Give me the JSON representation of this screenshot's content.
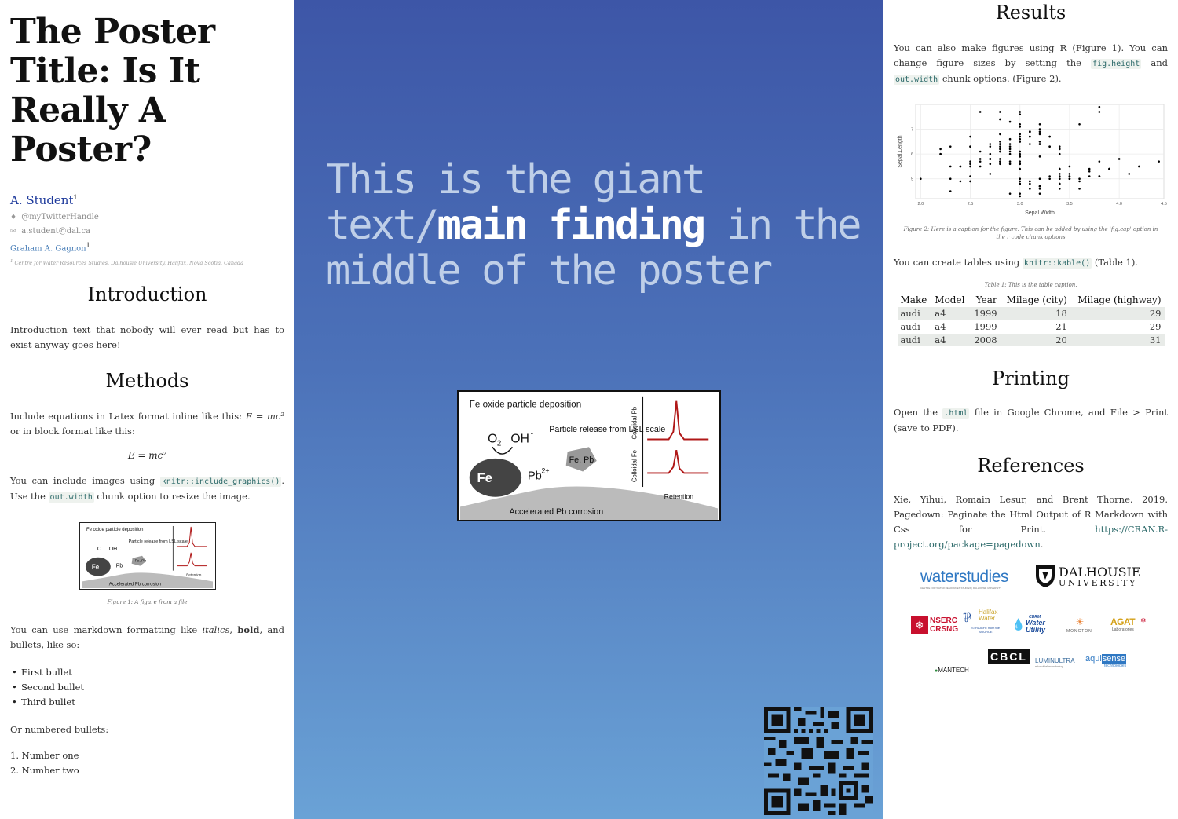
{
  "left": {
    "title": "The Poster Title: Is It Really A Poster?",
    "author": "A. Student",
    "author_sup": "1",
    "twitter": "@myTwitterHandle",
    "email": "a.student@dal.ca",
    "second_author": "Graham A. Gagnon",
    "second_author_sup": "1",
    "affiliation_sup": "1",
    "affiliation": "Centre for Water Resources Studies, Dalhousie University, Halifax, Nova Scotia, Canada",
    "intro_heading": "Introduction",
    "intro_text": "Introduction text that nobody will ever read but has to exist anyway goes here!",
    "methods_heading": "Methods",
    "eq_text_1": "Include equations in Latex format inline like this:",
    "eq_inline": "E = mc²",
    "eq_text_2": "or in block format like this:",
    "eq_block": "E = mc²",
    "img_text_1": "You can include images using",
    "img_code_1": "knitr::include_graphics()",
    "img_text_2": ". Use the",
    "img_code_2": "out.width",
    "img_text_3": "chunk option to resize the image.",
    "figure1_caption": "Figure 1: A figure from a file",
    "md_text_1": "You can use markdown formatting like",
    "md_italic": "italics",
    "md_text_2": ",",
    "md_bold": "bold",
    "md_text_3": ", and bullets, like so:",
    "bullets": [
      "First bullet",
      "Second bullet",
      "Third bullet"
    ],
    "numbered_intro": "Or numbered bullets:",
    "numbered": [
      "1. Number one",
      "2. Number two"
    ]
  },
  "center": {
    "giant_1": "This is the giant text/",
    "giant_emph": "main finding",
    "giant_2": " in the middle of the poster"
  },
  "figure_graphic": {
    "deposition": "Fe oxide particle deposition",
    "o2": "O",
    "o2_sub": "2",
    "oh": "OH",
    "oh_sup": "-",
    "fe3o4": "Fe",
    "pb": "Pb",
    "pb_sup": "2+",
    "release": "Particle release from LSL scale",
    "fepb": "Fe, Pb",
    "colloidal_pb": "Colloidal Pb",
    "colloidal_fe": "Colloidal Fe",
    "retention": "Retention",
    "corrosion": "Accelerated Pb corrosion"
  },
  "right": {
    "results_heading": "Results",
    "results_text_1": "You can also make figures using R (Figure 1). You can change figure sizes by setting the",
    "results_code_1": "fig.height",
    "results_text_2": "and",
    "results_code_2": "out.width",
    "results_text_3": "chunk options. (Figure 2).",
    "figure2_caption": "Figure 2: Here is a caption for the figure. This can be added by using the 'fig.cap' option in the r code chunk options",
    "tables_text_1": "You can create tables using",
    "tables_code": "knitr::kable()",
    "tables_text_2": "(Table 1).",
    "table_caption": "Table 1: This is the table caption.",
    "table_headers": [
      "Make",
      "Model",
      "Year",
      "Milage (city)",
      "Milage (highway)"
    ],
    "table_rows": [
      [
        "audi",
        "a4",
        "1999",
        "18",
        "29"
      ],
      [
        "audi",
        "a4",
        "1999",
        "21",
        "29"
      ],
      [
        "audi",
        "a4",
        "2008",
        "20",
        "31"
      ]
    ],
    "printing_heading": "Printing",
    "printing_text_1": "Open the",
    "printing_code": ".html",
    "printing_text_2": "file in Google Chrome, and File > Print (save to PDF).",
    "references_heading": "References",
    "reference_text": "Xie, Yihui, Romain Lesur, and Brent Thorne. 2019. Pagedown: Paginate the Html Output of R Markdown with Css for Print.",
    "reference_link": "https://CRAN.R-project.org/package=pagedown",
    "reference_end": ".",
    "logos": {
      "waterstudies": "waterstudies",
      "waterstudies_sub": "CENTRE FOR WATER RESOURCES STUDIES | DALHOUSIE UNIVERSITY",
      "dal_1": "DALHOUSIE",
      "dal_2": "UNIVERSITY",
      "nserc_1": "NSERC",
      "nserc_2": "CRSNG",
      "halifax_1": "Halifax",
      "halifax_2": "Water",
      "halifax_3": "STRAIGHT from the SOURCE",
      "cbrm_1": "CBRM",
      "cbrm_2": "Water",
      "cbrm_3": "Utility",
      "moncton": "MONCTON",
      "agat_1": "AGAT",
      "agat_2": "Laboratories",
      "mantech": "MANTECH",
      "cbcl": "CBCL",
      "luminultra": "LUMINULTRA",
      "luminultra_sub": "microbial monitoring",
      "aquisense_1": "aqui",
      "aquisense_2": "sense",
      "aquisense_3": "technologies"
    }
  },
  "chart_data": {
    "type": "scatter",
    "xlabel": "Sepal.Width",
    "ylabel": "Sepal.Length",
    "xlim": [
      1.95,
      4.45
    ],
    "ylim": [
      4.2,
      8.0
    ],
    "xticks": [
      2.0,
      2.5,
      3.0,
      3.5,
      4.0,
      4.5
    ],
    "yticks": [
      5,
      6,
      7
    ],
    "grid": true,
    "points": [
      [
        3.5,
        5.1
      ],
      [
        3.0,
        4.9
      ],
      [
        3.2,
        4.7
      ],
      [
        3.1,
        4.6
      ],
      [
        3.6,
        5.0
      ],
      [
        3.9,
        5.4
      ],
      [
        3.4,
        4.6
      ],
      [
        3.4,
        5.0
      ],
      [
        2.9,
        4.4
      ],
      [
        3.1,
        4.9
      ],
      [
        3.7,
        5.4
      ],
      [
        3.4,
        4.8
      ],
      [
        3.0,
        4.8
      ],
      [
        3.0,
        4.3
      ],
      [
        4.0,
        5.8
      ],
      [
        4.4,
        5.7
      ],
      [
        3.9,
        5.4
      ],
      [
        3.5,
        5.1
      ],
      [
        3.8,
        5.7
      ],
      [
        3.8,
        5.1
      ],
      [
        3.4,
        5.4
      ],
      [
        3.7,
        5.1
      ],
      [
        3.6,
        4.6
      ],
      [
        3.3,
        5.1
      ],
      [
        3.4,
        4.8
      ],
      [
        3.0,
        5.0
      ],
      [
        3.4,
        5.0
      ],
      [
        3.5,
        5.2
      ],
      [
        3.4,
        5.2
      ],
      [
        3.2,
        4.7
      ],
      [
        3.1,
        4.8
      ],
      [
        3.4,
        5.4
      ],
      [
        4.1,
        5.2
      ],
      [
        4.2,
        5.5
      ],
      [
        3.1,
        4.9
      ],
      [
        3.2,
        5.0
      ],
      [
        3.5,
        5.5
      ],
      [
        3.6,
        4.9
      ],
      [
        3.0,
        4.4
      ],
      [
        3.4,
        5.1
      ],
      [
        3.5,
        5.0
      ],
      [
        2.3,
        4.5
      ],
      [
        3.2,
        4.4
      ],
      [
        3.5,
        5.0
      ],
      [
        3.8,
        5.1
      ],
      [
        3.0,
        4.8
      ],
      [
        3.8,
        5.1
      ],
      [
        3.2,
        4.6
      ],
      [
        3.7,
        5.3
      ],
      [
        3.3,
        5.0
      ],
      [
        3.2,
        7.0
      ],
      [
        3.2,
        6.4
      ],
      [
        3.1,
        6.9
      ],
      [
        2.3,
        5.5
      ],
      [
        2.8,
        6.5
      ],
      [
        2.8,
        5.7
      ],
      [
        3.3,
        6.3
      ],
      [
        2.4,
        4.9
      ],
      [
        2.9,
        6.6
      ],
      [
        2.7,
        5.2
      ],
      [
        2.0,
        5.0
      ],
      [
        3.0,
        5.9
      ],
      [
        2.2,
        6.0
      ],
      [
        2.9,
        6.1
      ],
      [
        2.9,
        5.6
      ],
      [
        3.1,
        6.7
      ],
      [
        3.0,
        5.6
      ],
      [
        2.7,
        5.8
      ],
      [
        2.2,
        6.2
      ],
      [
        2.5,
        5.6
      ],
      [
        3.2,
        5.9
      ],
      [
        2.8,
        6.1
      ],
      [
        2.5,
        6.3
      ],
      [
        2.8,
        6.1
      ],
      [
        2.9,
        6.4
      ],
      [
        3.0,
        6.6
      ],
      [
        2.8,
        6.8
      ],
      [
        3.0,
        6.7
      ],
      [
        2.9,
        6.0
      ],
      [
        2.6,
        5.7
      ],
      [
        2.4,
        5.5
      ],
      [
        2.4,
        5.5
      ],
      [
        2.7,
        5.8
      ],
      [
        2.7,
        6.0
      ],
      [
        3.0,
        5.4
      ],
      [
        3.4,
        6.0
      ],
      [
        3.1,
        6.7
      ],
      [
        2.3,
        6.3
      ],
      [
        3.0,
        5.6
      ],
      [
        2.5,
        5.5
      ],
      [
        2.6,
        5.5
      ],
      [
        3.0,
        6.1
      ],
      [
        2.6,
        5.8
      ],
      [
        2.3,
        5.0
      ],
      [
        2.7,
        5.6
      ],
      [
        3.0,
        5.7
      ],
      [
        2.9,
        5.7
      ],
      [
        2.9,
        6.2
      ],
      [
        2.5,
        5.1
      ],
      [
        2.8,
        5.7
      ],
      [
        3.3,
        6.3
      ],
      [
        2.7,
        5.8
      ],
      [
        3.0,
        7.1
      ],
      [
        2.9,
        6.3
      ],
      [
        3.0,
        6.5
      ],
      [
        3.0,
        7.6
      ],
      [
        2.5,
        4.9
      ],
      [
        2.9,
        7.3
      ],
      [
        2.5,
        6.7
      ],
      [
        3.6,
        7.2
      ],
      [
        3.2,
        6.5
      ],
      [
        2.7,
        6.4
      ],
      [
        3.0,
        6.8
      ],
      [
        2.5,
        5.7
      ],
      [
        2.8,
        5.8
      ],
      [
        3.2,
        6.4
      ],
      [
        3.0,
        6.5
      ],
      [
        3.8,
        7.7
      ],
      [
        2.6,
        7.7
      ],
      [
        2.2,
        6.0
      ],
      [
        3.2,
        6.9
      ],
      [
        2.8,
        5.6
      ],
      [
        2.8,
        7.7
      ],
      [
        2.7,
        6.3
      ],
      [
        3.3,
        6.7
      ],
      [
        3.2,
        7.2
      ],
      [
        2.8,
        6.2
      ],
      [
        3.0,
        6.1
      ],
      [
        2.8,
        6.4
      ],
      [
        3.0,
        7.2
      ],
      [
        2.8,
        7.4
      ],
      [
        3.8,
        7.9
      ],
      [
        2.8,
        6.4
      ],
      [
        2.8,
        6.3
      ],
      [
        2.6,
        6.1
      ],
      [
        3.0,
        7.7
      ],
      [
        3.4,
        6.3
      ],
      [
        3.1,
        6.4
      ],
      [
        3.0,
        6.0
      ],
      [
        3.1,
        6.9
      ],
      [
        3.1,
        6.7
      ],
      [
        3.1,
        6.9
      ],
      [
        2.7,
        5.8
      ],
      [
        3.2,
        6.8
      ],
      [
        3.3,
        6.7
      ],
      [
        3.0,
        6.7
      ],
      [
        2.5,
        6.3
      ],
      [
        3.0,
        6.5
      ],
      [
        3.4,
        6.2
      ],
      [
        3.0,
        5.9
      ]
    ]
  }
}
